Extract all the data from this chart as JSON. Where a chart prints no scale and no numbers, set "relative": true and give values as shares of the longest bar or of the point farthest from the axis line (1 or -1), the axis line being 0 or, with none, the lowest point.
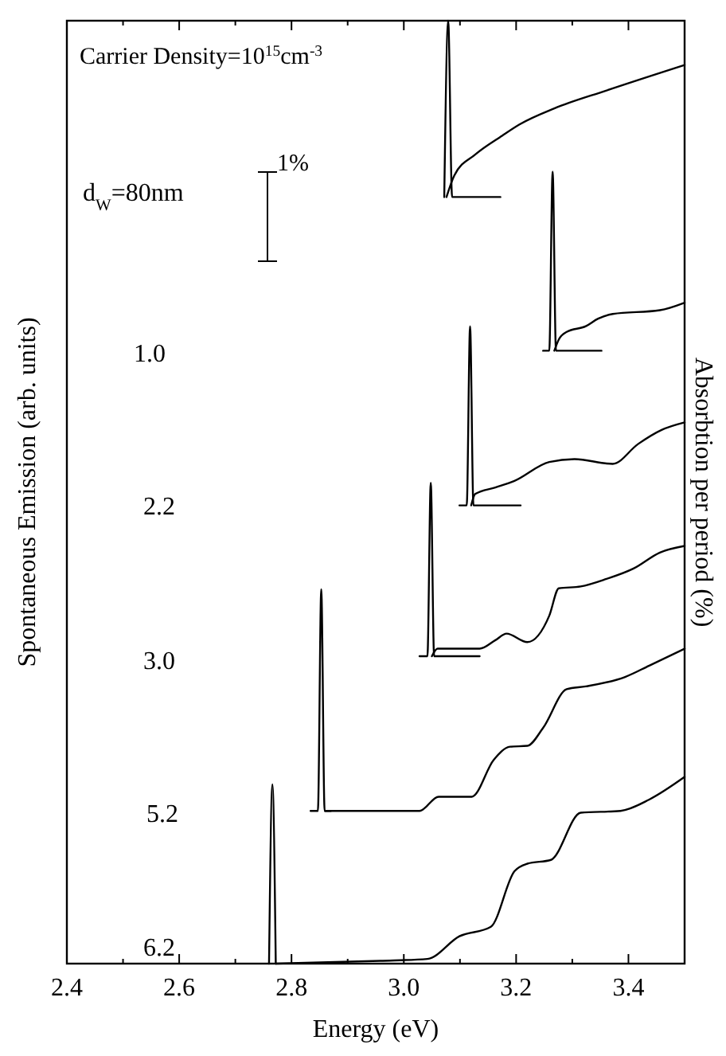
{
  "chart_data": {
    "type": "line",
    "relative": true,
    "xlabel": "Energy (eV)",
    "ylabel": "Spontaneous Emission (arb. units)",
    "y2label": "Absorbtion per period (%)",
    "xlim": [
      2.4,
      3.5
    ],
    "xticks": [
      2.4,
      {
        "value": 2.5,
        "label": null
      },
      2.6,
      {
        "value": 2.7,
        "label": null
      },
      2.8,
      {
        "value": 2.9,
        "label": null
      },
      {
        "value": 3.0,
        "label": "3.0"
      },
      {
        "value": 3.1,
        "label": null
      },
      3.2,
      {
        "value": 3.3,
        "label": null
      },
      3.4,
      {
        "value": 3.5,
        "label": null
      }
    ],
    "annotations": [
      "Carrier Density=10$^{15}$cm$^{-3}$",
      "d$_{W}$=80nm",
      "1%",
      "1.0",
      "2.2",
      "3.0",
      "5.2",
      "6.2"
    ],
    "series": [
      {
        "color": "#000000",
        "x": [
          3.072,
          3.079,
          3.086,
          3.172
        ],
        "values": [
          0.813,
          1.0,
          0.813,
          0.813
        ]
      },
      {
        "color": "#000000",
        "x": [
          3.076,
          3.09,
          3.127,
          3.175,
          3.206,
          3.268,
          3.361,
          3.5
        ],
        "values": [
          0.813,
          0.836,
          0.858,
          0.878,
          0.89,
          0.907,
          0.926,
          0.953
        ]
      },
      {
        "color": "#000000",
        "x": [
          3.248,
          3.259,
          3.265,
          3.271,
          3.352
        ],
        "values": [
          0.65,
          0.65,
          0.84,
          0.65,
          0.65
        ]
      },
      {
        "color": "#000000",
        "x": [
          3.268,
          3.276,
          3.29,
          3.324,
          3.346,
          3.372,
          3.456,
          3.5
        ],
        "values": [
          0.65,
          0.662,
          0.67,
          0.676,
          0.684,
          0.689,
          0.693,
          0.701
        ]
      },
      {
        "color": "#000000",
        "x": [
          3.099,
          3.112,
          3.118,
          3.124,
          3.208
        ],
        "values": [
          0.486,
          0.486,
          0.676,
          0.486,
          0.486
        ]
      },
      {
        "color": "#000000",
        "x": [
          3.12,
          3.127,
          3.163,
          3.197,
          3.259,
          3.304,
          3.372,
          3.417,
          3.459,
          3.5
        ],
        "values": [
          0.486,
          0.498,
          0.505,
          0.512,
          0.532,
          0.535,
          0.53,
          0.551,
          0.566,
          0.574
        ]
      },
      {
        "color": "#000000",
        "x": [
          3.028,
          3.042,
          3.048,
          3.054,
          3.135
        ],
        "values": [
          0.326,
          0.326,
          0.51,
          0.326,
          0.326
        ]
      },
      {
        "color": "#000000",
        "x": [
          3.05,
          3.06,
          3.135,
          3.163,
          3.183,
          3.22,
          3.259,
          3.276,
          3.315,
          3.361,
          3.409,
          3.456,
          3.5
        ],
        "values": [
          0.326,
          0.334,
          0.334,
          0.343,
          0.35,
          0.341,
          0.369,
          0.398,
          0.4,
          0.408,
          0.419,
          0.436,
          0.443
        ]
      },
      {
        "color": "#000000",
        "x": [
          2.834,
          2.847,
          2.853,
          2.859,
          2.87
        ],
        "values": [
          0.162,
          0.162,
          0.397,
          0.162,
          0.162
        ]
      },
      {
        "color": "#000000",
        "x": [
          2.86,
          3.028,
          3.062,
          3.099,
          3.121,
          3.16,
          3.189,
          3.22,
          3.248,
          3.29,
          3.324,
          3.394,
          3.437,
          3.5
        ],
        "values": [
          0.162,
          0.162,
          0.177,
          0.177,
          0.177,
          0.216,
          0.23,
          0.231,
          0.25,
          0.291,
          0.294,
          0.304,
          0.316,
          0.334
        ]
      },
      {
        "color": "#000000",
        "x": [
          2.76,
          2.766,
          2.772
        ],
        "values": [
          0,
          0.19,
          0
        ]
      },
      {
        "color": "#000000",
        "x": [
          2.772,
          2.958,
          3.042,
          3.099,
          3.155,
          3.197,
          3.22,
          3.262,
          3.315,
          3.386,
          3.437,
          3.5
        ],
        "values": [
          0,
          0.003,
          0.005,
          0.029,
          0.039,
          0.098,
          0.106,
          0.11,
          0.16,
          0.162,
          0.174,
          0.198
        ]
      }
    ]
  }
}
